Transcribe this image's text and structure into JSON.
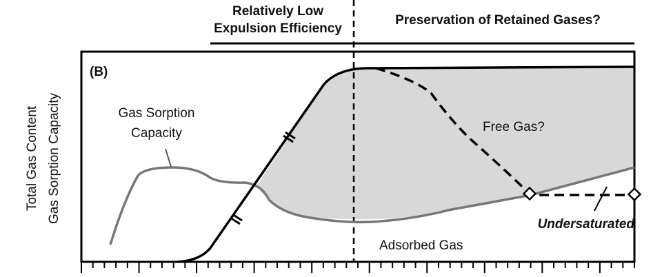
{
  "header": {
    "left_title": [
      "Relatively Low",
      "Expulsion Efficiency"
    ],
    "right_title": "Preservation of Retained Gases?"
  },
  "panel_label": "(B)",
  "y_axis": {
    "lines": [
      "Total Gas Content",
      "Gas Sorption Capacity"
    ]
  },
  "labels": {
    "gas_sorption_capacity": [
      "Gas Sorption",
      "Capacity"
    ],
    "free_gas": "Free Gas?",
    "undersaturated": "Undersaturated",
    "adsorbed_gas": "Adsorbed Gas"
  }
}
